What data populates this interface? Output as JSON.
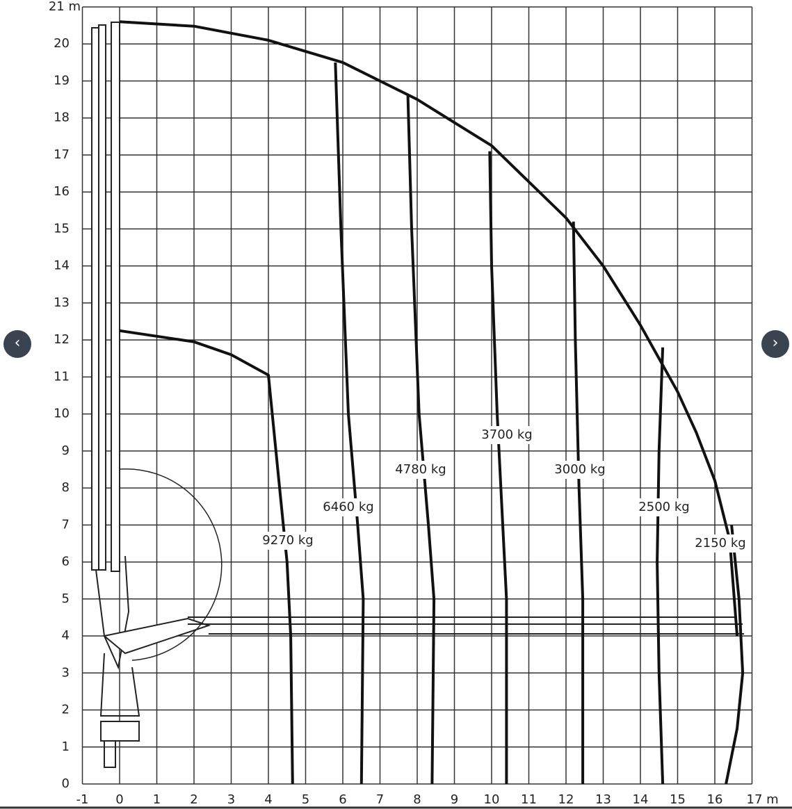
{
  "chart_data": {
    "type": "line",
    "xlim": [
      -1,
      17
    ],
    "ylim": [
      0,
      21
    ],
    "xticks": [
      -1,
      0,
      1,
      2,
      3,
      4,
      5,
      6,
      7,
      8,
      9,
      10,
      11,
      12,
      13,
      14,
      15,
      16,
      {
        "value": 17,
        "label": "17 m"
      }
    ],
    "yticks": [
      0,
      1,
      2,
      3,
      4,
      5,
      6,
      7,
      8,
      9,
      10,
      11,
      12,
      13,
      14,
      15,
      16,
      17,
      18,
      19,
      20,
      {
        "value": 21,
        "label": "21 m"
      }
    ],
    "grid": true,
    "color": "#111",
    "series": [
      {
        "x": [
          0,
          2,
          4,
          6,
          8,
          10,
          12,
          13,
          14,
          15,
          15.5,
          16,
          16.4,
          16.6
        ],
        "values": [
          20.6,
          20.48,
          20.1,
          19.5,
          18.5,
          17.25,
          15.3,
          14.0,
          12.4,
          10.6,
          9.5,
          8.2,
          6.6,
          4.0
        ]
      },
      {
        "name": "9270 kg",
        "x": [
          0,
          2,
          3,
          4,
          4.3,
          4.5,
          4.6,
          4.65
        ],
        "values": [
          12.25,
          11.95,
          11.6,
          11.05,
          8,
          6,
          4,
          0
        ]
      },
      {
        "name": "6460 kg",
        "x": [
          5.8,
          5.95,
          6.15,
          6.4,
          6.55,
          6.5
        ],
        "values": [
          19.5,
          15,
          10,
          7,
          5,
          0
        ]
      },
      {
        "name": "4780 kg",
        "x": [
          7.75,
          7.85,
          8.05,
          8.3,
          8.45,
          8.4
        ],
        "values": [
          18.6,
          15,
          10,
          7,
          5,
          0
        ]
      },
      {
        "name": "3700 kg",
        "x": [
          9.95,
          10.0,
          10.15,
          10.3,
          10.4,
          10.4
        ],
        "values": [
          17.1,
          14,
          10,
          7,
          5,
          0
        ]
      },
      {
        "name": "3000 kg",
        "x": [
          12.2,
          12.25,
          12.35,
          12.45,
          12.45
        ],
        "values": [
          15.2,
          12,
          8,
          5,
          0
        ]
      },
      {
        "name": "2500 kg",
        "x": [
          14.6,
          14.5,
          14.45,
          14.5,
          14.6
        ],
        "values": [
          11.8,
          9,
          6,
          3,
          0
        ]
      },
      {
        "name": "2150 kg",
        "x": [
          16.45,
          16.65,
          16.75,
          16.6,
          16.3
        ],
        "values": [
          7,
          5,
          3,
          1.5,
          0
        ]
      }
    ]
  }
}
